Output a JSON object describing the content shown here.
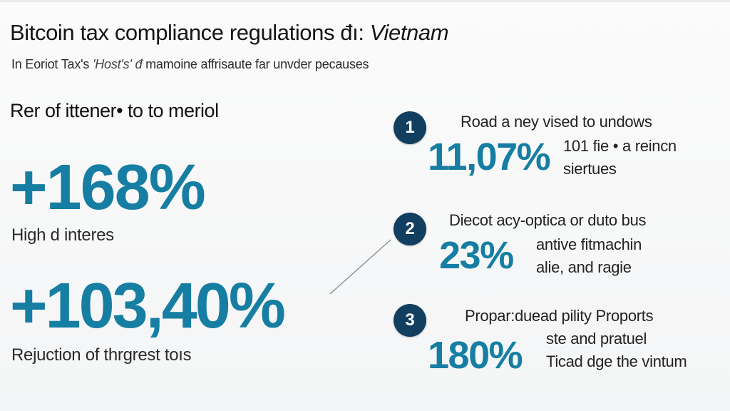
{
  "header": {
    "title_main": "Bitcoin tax compliance regulations",
    "title_mid": " đı: ",
    "title_italic": "Vietnam",
    "subtitle_main": "In Eoriot Tax's ",
    "subtitle_italic": "'Host's' đ ",
    "subtitle_end": "mamoine affrisaute far unvder pecauses"
  },
  "left": {
    "heading": "Rer of ittener• to to meriol",
    "stat1": {
      "value": "+168%",
      "label": "High d interes"
    },
    "stat2": {
      "value": "+103,40%",
      "label": "Rejuction of thrgrest toıs"
    }
  },
  "right": {
    "items": [
      {
        "number": "1",
        "percent": "11,07%",
        "line1": "Road a ney vised to undows",
        "line2": "101 fie • a reincn",
        "line3": "siertues"
      },
      {
        "number": "2",
        "percent": "23%",
        "line1": "Diecot acy-optica or duto bus",
        "line2": "antive fitmachin",
        "line3": "alie, and ragie"
      },
      {
        "number": "3",
        "percent": "180%",
        "line1": "Propar:duead pility Proports",
        "line2": "ste and pratuel",
        "line3": "Ticad dge the vintum"
      }
    ]
  },
  "colors": {
    "accent": "#167ea3",
    "circle": "#123e5f",
    "text": "#1d1d1f",
    "background": "#f6f7f8"
  }
}
